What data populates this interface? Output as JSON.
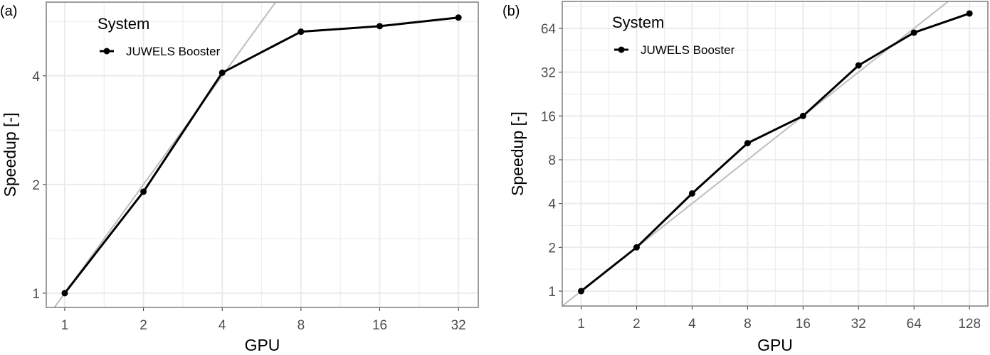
{
  "chart_data": [
    {
      "type": "line",
      "panel_label": "(a)",
      "title": "",
      "xlabel": "GPU",
      "ylabel": "Speedup [-]",
      "x_scale": "log2",
      "y_scale": "log2",
      "xlim": [
        0.85,
        38.1
      ],
      "ylim": [
        0.913,
        6.4
      ],
      "x_ticks": [
        1,
        2,
        4,
        8,
        16,
        32
      ],
      "x_tick_labels": [
        "1",
        "2",
        "4",
        "8",
        "16",
        "32"
      ],
      "y_ticks": [
        1,
        2,
        4
      ],
      "y_tick_labels": [
        "1",
        "2",
        "4"
      ],
      "grid": true,
      "legend": {
        "title": "System",
        "position": "top-left",
        "entries": [
          "JUWELS Booster"
        ]
      },
      "reference_line": "ideal speedup y = x",
      "series": [
        {
          "name": "JUWELS Booster",
          "color": "#000000",
          "x": [
            1,
            2,
            4,
            8,
            16,
            32
          ],
          "y": [
            1.0,
            1.91,
            4.08,
            5.3,
            5.49,
            5.8
          ]
        }
      ]
    },
    {
      "type": "line",
      "panel_label": "(b)",
      "title": "",
      "xlabel": "GPU",
      "ylabel": "Speedup [-]",
      "x_scale": "log2",
      "y_scale": "log2",
      "xlim": [
        0.79,
        161
      ],
      "ylim": [
        0.79,
        98
      ],
      "x_ticks": [
        1,
        2,
        4,
        8,
        16,
        32,
        64,
        128
      ],
      "x_tick_labels": [
        "1",
        "2",
        "4",
        "8",
        "16",
        "32",
        "64",
        "128"
      ],
      "y_ticks": [
        1,
        2,
        4,
        8,
        16,
        32,
        64
      ],
      "y_tick_labels": [
        "1",
        "2",
        "4",
        "8",
        "16",
        "32",
        "64"
      ],
      "grid": true,
      "legend": {
        "title": "System",
        "position": "top-left",
        "entries": [
          "JUWELS Booster"
        ]
      },
      "reference_line": "ideal speedup y = x",
      "series": [
        {
          "name": "JUWELS Booster",
          "color": "#000000",
          "x": [
            1,
            2,
            4,
            8,
            16,
            32,
            64,
            128
          ],
          "y": [
            1.0,
            2.0,
            4.69,
            10.4,
            16.0,
            35.6,
            59.8,
            81.0
          ]
        }
      ]
    }
  ],
  "colors": {
    "grid": "#ebebeb",
    "ideal_line": "#bebebe",
    "border": "#7f7f7f",
    "series": "#000000"
  }
}
